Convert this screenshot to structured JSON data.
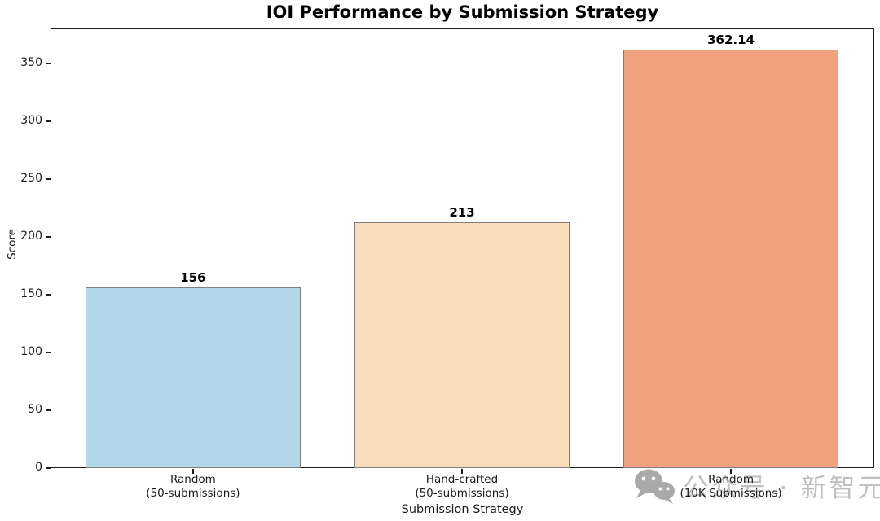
{
  "watermark": {
    "icon": "wechat-icon",
    "text": "公众号 · 新智元"
  },
  "chart_data": {
    "type": "bar",
    "title": "IOI Performance by Submission Strategy",
    "xlabel": "Submission Strategy",
    "ylabel": "Score",
    "categories": [
      "Random\n(50-submissions)",
      "Hand-crafted\n(50-submissions)",
      "Random\n(10K Submissions)"
    ],
    "values": [
      156,
      213,
      362.14
    ],
    "value_labels": [
      "156",
      "213",
      "362.14"
    ],
    "bar_colors": [
      "#b3d7e8",
      "#f8dcbb",
      "#f0a17d"
    ],
    "bar_edge_color": "#7f7f7f",
    "yticks": [
      0,
      50,
      100,
      150,
      200,
      250,
      300,
      350
    ],
    "ylim": [
      0,
      380.25
    ],
    "grid": false,
    "legend": null
  }
}
